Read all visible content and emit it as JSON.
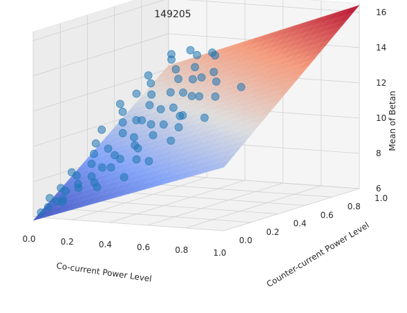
{
  "chart_data": {
    "type": "scatter",
    "subtype": "3d-scatter-with-fitted-surface",
    "title": "149205",
    "xlabel": "Co-current Power Level",
    "ylabel": "Counter-current Power Level",
    "zlabel": "Mean of Betan",
    "xlim": [
      0.0,
      1.0
    ],
    "ylim": [
      0.0,
      1.0
    ],
    "zlim": [
      6,
      16.5
    ],
    "x_ticks": [
      "0.0",
      "0.2",
      "0.4",
      "0.6",
      "0.8",
      "1.0"
    ],
    "y_ticks": [
      "0.0",
      "0.2",
      "0.4",
      "0.6",
      "0.8",
      "1.0"
    ],
    "z_ticks": [
      "6",
      "8",
      "10",
      "12",
      "14",
      "16"
    ],
    "grid": true,
    "surface": {
      "colormap": "coolwarm",
      "corners": {
        "x0y0": 5.8,
        "x1y0": 9.6,
        "x0y1": 12.2,
        "x1y1": 16.4
      }
    },
    "scatter": {
      "color": "#1f77b4",
      "points": [
        [
          0.02,
          0.03,
          6.2
        ],
        [
          0.05,
          0.04,
          6.5
        ],
        [
          0.03,
          0.08,
          6.9
        ],
        [
          0.08,
          0.06,
          6.8
        ],
        [
          0.1,
          0.1,
          7.3
        ],
        [
          0.12,
          0.05,
          7.0
        ],
        [
          0.06,
          0.12,
          7.4
        ],
        [
          0.15,
          0.12,
          7.7
        ],
        [
          0.18,
          0.08,
          7.6
        ],
        [
          0.1,
          0.18,
          8.0
        ],
        [
          0.2,
          0.15,
          8.1
        ],
        [
          0.22,
          0.2,
          8.5
        ],
        [
          0.15,
          0.22,
          8.6
        ],
        [
          0.25,
          0.1,
          7.9
        ],
        [
          0.28,
          0.18,
          8.6
        ],
        [
          0.12,
          0.28,
          9.0
        ],
        [
          0.18,
          0.3,
          9.3
        ],
        [
          0.25,
          0.25,
          9.1
        ],
        [
          0.3,
          0.22,
          9.0
        ],
        [
          0.32,
          0.3,
          9.6
        ],
        [
          0.08,
          0.35,
          9.4
        ],
        [
          0.2,
          0.38,
          10.0
        ],
        [
          0.28,
          0.35,
          9.9
        ],
        [
          0.35,
          0.28,
          9.5
        ],
        [
          0.38,
          0.35,
          10.1
        ],
        [
          0.15,
          0.45,
          10.4
        ],
        [
          0.25,
          0.45,
          10.6
        ],
        [
          0.32,
          0.42,
          10.5
        ],
        [
          0.4,
          0.4,
          10.6
        ],
        [
          0.1,
          0.52,
          10.8
        ],
        [
          0.22,
          0.55,
          11.2
        ],
        [
          0.3,
          0.52,
          11.1
        ],
        [
          0.38,
          0.5,
          11.3
        ],
        [
          0.45,
          0.45,
          11.0
        ],
        [
          0.18,
          0.62,
          11.6
        ],
        [
          0.28,
          0.62,
          11.8
        ],
        [
          0.36,
          0.6,
          11.9
        ],
        [
          0.42,
          0.58,
          11.8
        ],
        [
          0.12,
          0.7,
          12.0
        ],
        [
          0.25,
          0.72,
          12.3
        ],
        [
          0.34,
          0.7,
          12.4
        ],
        [
          0.05,
          0.78,
          12.2
        ],
        [
          0.18,
          0.8,
          12.6
        ],
        [
          0.28,
          0.8,
          12.8
        ],
        [
          0.1,
          0.88,
          12.9
        ],
        [
          0.22,
          0.9,
          13.2
        ],
        [
          0.15,
          0.95,
          13.3
        ],
        [
          0.05,
          0.95,
          13.0
        ],
        [
          0.3,
          0.9,
          13.4
        ],
        [
          0.4,
          0.68,
          12.6
        ],
        [
          0.5,
          0.4,
          11.2
        ],
        [
          0.55,
          0.3,
          10.8
        ],
        [
          0.48,
          0.55,
          11.9
        ],
        [
          0.6,
          0.5,
          12.1
        ],
        [
          0.45,
          0.7,
          12.9
        ],
        [
          0.52,
          0.62,
          12.6
        ],
        [
          0.58,
          0.2,
          10.3
        ],
        [
          0.65,
          0.35,
          11.3
        ],
        [
          0.7,
          0.55,
          12.6
        ],
        [
          0.35,
          0.85,
          13.4
        ],
        [
          0.06,
          0.2,
          8.1
        ],
        [
          0.04,
          0.45,
          9.9
        ],
        [
          0.03,
          0.6,
          11.0
        ],
        [
          0.14,
          0.02,
          6.9
        ],
        [
          0.3,
          0.05,
          7.8
        ],
        [
          0.42,
          0.08,
          8.4
        ],
        [
          0.4,
          0.2,
          9.1
        ],
        [
          0.5,
          0.15,
          9.2
        ],
        [
          0.08,
          0.65,
          11.5
        ],
        [
          0.2,
          0.48,
          10.5
        ]
      ]
    }
  }
}
